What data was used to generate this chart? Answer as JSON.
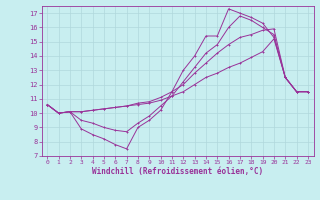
{
  "xlabel": "Windchill (Refroidissement éolien,°C)",
  "background_color": "#c8eef0",
  "grid_color": "#b0d8dc",
  "line_color": "#993399",
  "xlim": [
    -0.5,
    23.5
  ],
  "ylim": [
    7,
    17.5
  ],
  "xticks": [
    0,
    1,
    2,
    3,
    4,
    5,
    6,
    7,
    8,
    9,
    10,
    11,
    12,
    13,
    14,
    15,
    16,
    17,
    18,
    19,
    20,
    21,
    22,
    23
  ],
  "yticks": [
    7,
    8,
    9,
    10,
    11,
    12,
    13,
    14,
    15,
    16,
    17
  ],
  "line1_x": [
    0,
    1,
    2,
    3,
    4,
    5,
    6,
    7,
    8,
    9,
    10,
    11,
    12,
    13,
    14,
    15,
    16,
    17,
    18,
    19,
    20,
    21,
    22,
    23
  ],
  "line1_y": [
    10.6,
    10.0,
    10.1,
    8.9,
    8.5,
    8.2,
    7.8,
    7.5,
    9.0,
    9.5,
    10.2,
    11.5,
    13.0,
    14.0,
    15.4,
    15.4,
    17.3,
    17.0,
    16.7,
    16.3,
    15.3,
    12.5,
    11.5,
    11.5
  ],
  "line2_x": [
    0,
    1,
    2,
    3,
    4,
    5,
    6,
    7,
    8,
    9,
    10,
    11,
    12,
    13,
    14,
    15,
    16,
    17,
    18,
    19,
    20,
    21,
    22,
    23
  ],
  "line2_y": [
    10.6,
    10.0,
    10.1,
    10.1,
    10.2,
    10.3,
    10.4,
    10.5,
    10.6,
    10.7,
    10.9,
    11.2,
    11.5,
    12.0,
    12.5,
    12.8,
    13.2,
    13.5,
    13.9,
    14.3,
    15.2,
    12.5,
    11.5,
    11.5
  ],
  "line3_x": [
    0,
    1,
    2,
    3,
    4,
    5,
    6,
    7,
    8,
    9,
    10,
    11,
    12,
    13,
    14,
    15,
    16,
    17,
    18,
    19,
    20,
    21,
    22,
    23
  ],
  "line3_y": [
    10.6,
    10.0,
    10.1,
    10.1,
    10.2,
    10.3,
    10.4,
    10.5,
    10.7,
    10.8,
    11.1,
    11.5,
    12.0,
    12.8,
    13.5,
    14.2,
    14.8,
    15.3,
    15.5,
    15.8,
    15.9,
    12.5,
    11.5,
    11.5
  ],
  "line4_x": [
    0,
    1,
    2,
    3,
    4,
    5,
    6,
    7,
    8,
    9,
    10,
    11,
    12,
    13,
    14,
    15,
    16,
    17,
    18,
    19,
    20,
    21,
    22,
    23
  ],
  "line4_y": [
    10.6,
    10.0,
    10.1,
    9.5,
    9.3,
    9.0,
    8.8,
    8.7,
    9.3,
    9.8,
    10.5,
    11.2,
    12.2,
    13.2,
    14.2,
    14.8,
    16.0,
    16.8,
    16.5,
    16.0,
    15.5,
    12.5,
    11.5,
    11.5
  ],
  "xlabel_fontsize": 5.5,
  "tick_fontsize": 4.5,
  "marker_size": 2.0,
  "linewidth": 0.7
}
